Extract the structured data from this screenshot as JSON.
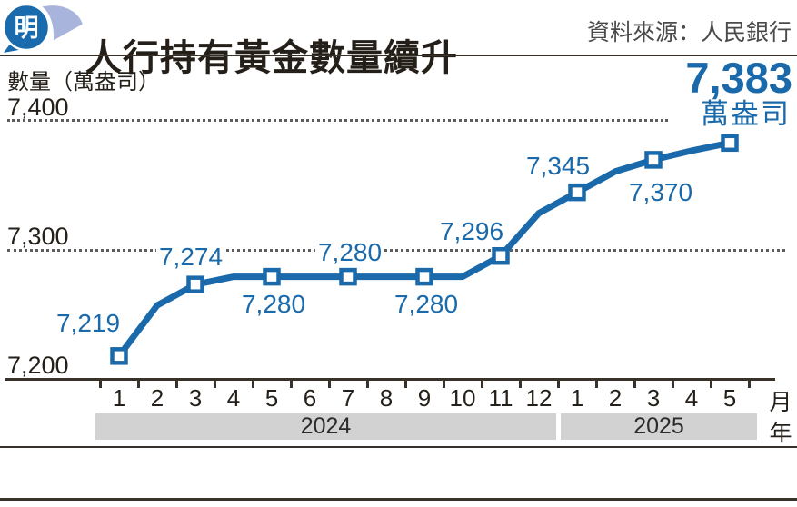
{
  "header": {
    "logo_char": "明",
    "title": "人行持有黃金數量續升",
    "source": "資料來源：人民銀行"
  },
  "chart": {
    "unit_label": "數量（萬盎司）",
    "y_tick_labels": [
      "7,400",
      "7,300",
      "7,200"
    ],
    "month_axis_unit": "月",
    "year_axis_unit": "年",
    "highlight_value": "7,383",
    "highlight_unit": "萬盎司"
  },
  "chart_data": {
    "type": "line",
    "title": "人行持有黃金數量續升",
    "source": "資料來源：人民銀行",
    "ylabel": "數量（萬盎司）",
    "ylim": [
      7200,
      7400
    ],
    "y_gridlines": [
      7400,
      7300
    ],
    "x": [
      "2024-1",
      "2024-2",
      "2024-3",
      "2024-4",
      "2024-5",
      "2024-6",
      "2024-7",
      "2024-8",
      "2024-9",
      "2024-10",
      "2024-11",
      "2024-12",
      "2025-1",
      "2025-2",
      "2025-3",
      "2025-4",
      "2025-5"
    ],
    "month_labels": [
      "1",
      "2",
      "3",
      "4",
      "5",
      "6",
      "7",
      "8",
      "9",
      "10",
      "11",
      "12",
      "1",
      "2",
      "3",
      "4",
      "5"
    ],
    "years": [
      {
        "label": "2024",
        "months": 12
      },
      {
        "label": "2025",
        "months": 5
      }
    ],
    "values": [
      7219,
      7258,
      7274,
      7280,
      7280,
      7280,
      7280,
      7280,
      7280,
      7280,
      7296,
      7329,
      7345,
      7361,
      7370,
      7377,
      7383
    ],
    "marker_indices": [
      0,
      2,
      4,
      6,
      8,
      10,
      12,
      14,
      16
    ],
    "point_labels": [
      {
        "index": 0,
        "text": "7,219"
      },
      {
        "index": 2,
        "text": "7,274"
      },
      {
        "index": 4,
        "text": "7,280"
      },
      {
        "index": 6,
        "text": "7,280"
      },
      {
        "index": 8,
        "text": "7,280"
      },
      {
        "index": 10,
        "text": "7,296"
      },
      {
        "index": 12,
        "text": "7,345"
      },
      {
        "index": 14,
        "text": "7,370"
      },
      {
        "index": 16,
        "text": "7,383",
        "highlight": true
      }
    ],
    "colors": {
      "line": "#1a69aa",
      "marker_fill": "#ffffff",
      "label": "#1a69aa",
      "grid": "#5e5e5e",
      "axis": "#38322a",
      "year_band": "#d2d2d2",
      "title": "#241f18",
      "source": "#4a4a4a"
    }
  }
}
